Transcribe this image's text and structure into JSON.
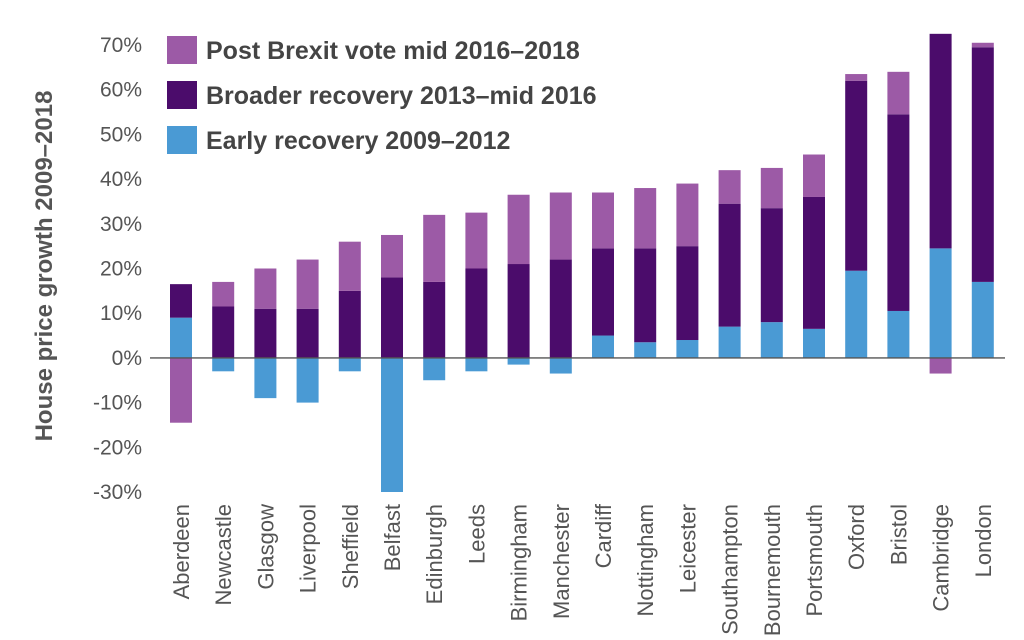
{
  "chart_data": {
    "type": "bar",
    "stacked": true,
    "title": "",
    "xlabel": "",
    "ylabel": "House price growth 2009–2018",
    "ylim": [
      -30,
      70
    ],
    "y_ticks": [
      70,
      60,
      50,
      40,
      30,
      20,
      10,
      0,
      -10,
      -20,
      -30
    ],
    "y_tick_labels": [
      "70%",
      "60%",
      "50%",
      "40%",
      "30%",
      "20%",
      "10%",
      "0%",
      "-10%",
      "-20%",
      "-30%"
    ],
    "legend_position": "top-left",
    "grid": false,
    "categories": [
      "Aberdeen",
      "Newcastle",
      "Glasgow",
      "Liverpool",
      "Sheffield",
      "Belfast",
      "Edinburgh",
      "Leeds",
      "Birmingham",
      "Manchester",
      "Cardiff",
      "Nottingham",
      "Leicester",
      "Southampton",
      "Bournemouth",
      "Portsmouth",
      "Oxford",
      "Bristol",
      "Cambridge",
      "London"
    ],
    "series": [
      {
        "name": "Early recovery 2009–2012",
        "color": "#4a9ad4",
        "values": [
          9,
          -3,
          -9,
          -10,
          -3,
          -30,
          -5,
          -3,
          -1.5,
          -3.5,
          5,
          3.5,
          4,
          7,
          8,
          6.5,
          19.5,
          10.5,
          24.5,
          17
        ]
      },
      {
        "name": "Broader recovery 2013–mid 2016",
        "color": "#4b0c6b",
        "values": [
          7.5,
          11.5,
          11,
          11,
          15,
          18,
          17,
          20,
          21,
          22,
          19.5,
          21,
          21,
          27.5,
          25.5,
          29.5,
          42.5,
          44,
          48,
          52.5
        ]
      },
      {
        "name": "Post Brexit vote mid 2016–2018",
        "color": "#9c5aa6",
        "values": [
          -14.5,
          5.5,
          9,
          11,
          11,
          9.5,
          15,
          12.5,
          15.5,
          15,
          12.5,
          13.5,
          14,
          7.5,
          9,
          9.5,
          1.5,
          9.5,
          -3.5,
          1
        ]
      }
    ]
  }
}
